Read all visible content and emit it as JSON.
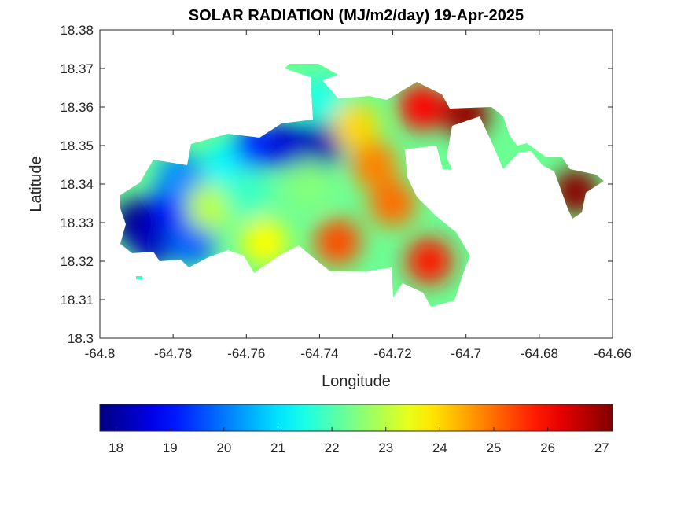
{
  "chart_data": {
    "type": "heatmap",
    "title": "SOLAR RADIATION (MJ/m2/day) 19-Apr-2025",
    "xlabel": "Longitude",
    "ylabel": "Latitude",
    "xlim": [
      -64.8,
      -64.66
    ],
    "ylim": [
      18.3,
      18.38
    ],
    "xticks": [
      "-64.8",
      "-64.78",
      "-64.76",
      "-64.74",
      "-64.72",
      "-64.7",
      "-64.68",
      "-64.66"
    ],
    "yticks": [
      "18.3",
      "18.31",
      "18.32",
      "18.33",
      "18.34",
      "18.35",
      "18.36",
      "18.37",
      "18.38"
    ],
    "colorbar": {
      "colormap": "jet",
      "range": [
        17.7,
        27.2
      ],
      "ticks": [
        "18",
        "19",
        "20",
        "21",
        "22",
        "23",
        "24",
        "25",
        "26",
        "27"
      ]
    },
    "grid": false,
    "regions": [
      {
        "lon": -64.79,
        "lat": 18.33,
        "value": 17.8
      },
      {
        "lon": -64.785,
        "lat": 18.325,
        "value": 18.3
      },
      {
        "lon": -64.78,
        "lat": 18.335,
        "value": 19.0
      },
      {
        "lon": -64.775,
        "lat": 18.325,
        "value": 19.8
      },
      {
        "lon": -64.778,
        "lat": 18.342,
        "value": 20.2
      },
      {
        "lon": -64.77,
        "lat": 18.334,
        "value": 23.0
      },
      {
        "lon": -64.765,
        "lat": 18.345,
        "value": 21.2
      },
      {
        "lon": -64.76,
        "lat": 18.338,
        "value": 21.8
      },
      {
        "lon": -64.757,
        "lat": 18.35,
        "value": 19.3
      },
      {
        "lon": -64.748,
        "lat": 18.35,
        "value": 18.5
      },
      {
        "lon": -64.74,
        "lat": 18.35,
        "value": 18.2
      },
      {
        "lon": -64.74,
        "lat": 18.362,
        "value": 21.5
      },
      {
        "lon": -64.743,
        "lat": 18.34,
        "value": 22.5
      },
      {
        "lon": -64.755,
        "lat": 18.325,
        "value": 23.6
      },
      {
        "lon": -64.73,
        "lat": 18.355,
        "value": 24.0
      },
      {
        "lon": -64.725,
        "lat": 18.345,
        "value": 24.8
      },
      {
        "lon": -64.735,
        "lat": 18.325,
        "value": 25.3
      },
      {
        "lon": -64.72,
        "lat": 18.335,
        "value": 25.0
      },
      {
        "lon": -64.712,
        "lat": 18.36,
        "value": 26.0
      },
      {
        "lon": -64.71,
        "lat": 18.32,
        "value": 25.8
      },
      {
        "lon": -64.7,
        "lat": 18.358,
        "value": 27.0
      },
      {
        "lon": -64.67,
        "lat": 18.338,
        "value": 27.1
      }
    ]
  }
}
